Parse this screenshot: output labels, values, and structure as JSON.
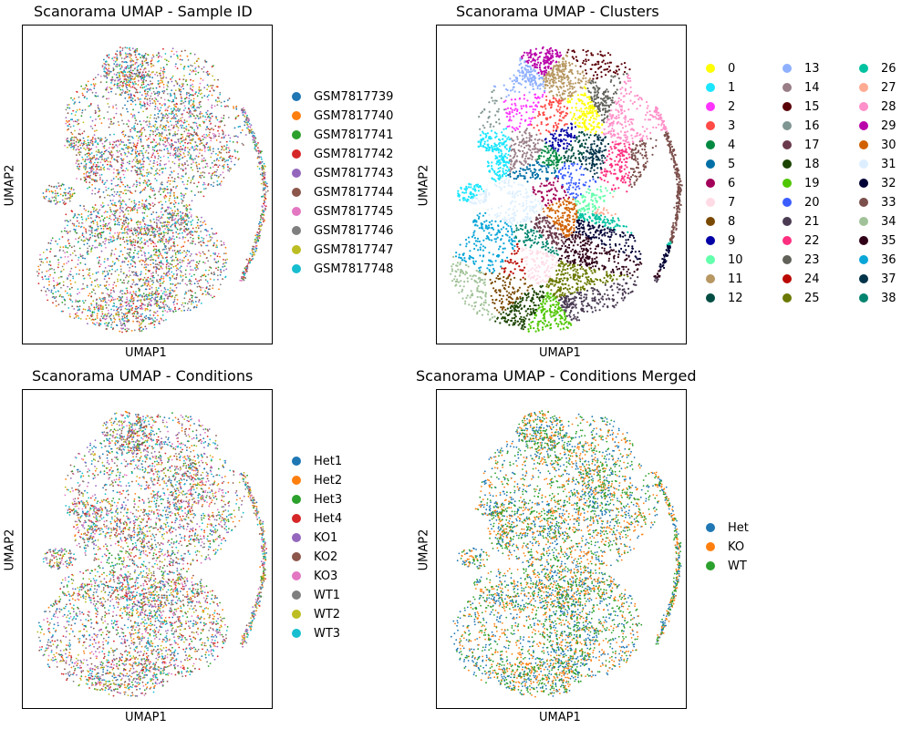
{
  "chart_data": [
    {
      "type": "scatter",
      "title": "Scanorama UMAP - Sample ID",
      "xlabel": "UMAP1",
      "ylabel": "UMAP2",
      "grid": false,
      "legend_placement": "right",
      "series": [
        {
          "name": "GSM7817739",
          "color": "#1f77b4"
        },
        {
          "name": "GSM7817740",
          "color": "#ff7f0e"
        },
        {
          "name": "GSM7817741",
          "color": "#2ca02c"
        },
        {
          "name": "GSM7817742",
          "color": "#d62728"
        },
        {
          "name": "GSM7817743",
          "color": "#9467bd"
        },
        {
          "name": "GSM7817744",
          "color": "#8c564b"
        },
        {
          "name": "GSM7817745",
          "color": "#e377c2"
        },
        {
          "name": "GSM7817746",
          "color": "#7f7f7f"
        },
        {
          "name": "GSM7817747",
          "color": "#bcbd22"
        },
        {
          "name": "GSM7817748",
          "color": "#17becf"
        }
      ]
    },
    {
      "type": "scatter",
      "title": "Scanorama UMAP - Clusters",
      "xlabel": "UMAP1",
      "ylabel": "UMAP2",
      "grid": false,
      "legend_placement": "right",
      "series": [
        {
          "name": "0",
          "color": "#ffff00"
        },
        {
          "name": "1",
          "color": "#1ce6ff"
        },
        {
          "name": "2",
          "color": "#ff34ff"
        },
        {
          "name": "3",
          "color": "#ff4a46"
        },
        {
          "name": "4",
          "color": "#008941"
        },
        {
          "name": "5",
          "color": "#006fa6"
        },
        {
          "name": "6",
          "color": "#a30059"
        },
        {
          "name": "7",
          "color": "#ffdbe5"
        },
        {
          "name": "8",
          "color": "#7a4900"
        },
        {
          "name": "9",
          "color": "#0000a6"
        },
        {
          "name": "10",
          "color": "#63ffac"
        },
        {
          "name": "11",
          "color": "#b79762"
        },
        {
          "name": "12",
          "color": "#004d43"
        },
        {
          "name": "13",
          "color": "#8fb0ff"
        },
        {
          "name": "14",
          "color": "#997d87"
        },
        {
          "name": "15",
          "color": "#5a0007"
        },
        {
          "name": "16",
          "color": "#809693"
        },
        {
          "name": "17",
          "color": "#6a3a4c"
        },
        {
          "name": "18",
          "color": "#1b4400"
        },
        {
          "name": "19",
          "color": "#4fc601"
        },
        {
          "name": "20",
          "color": "#3b5dff"
        },
        {
          "name": "21",
          "color": "#4a3b53"
        },
        {
          "name": "22",
          "color": "#ff2f80"
        },
        {
          "name": "23",
          "color": "#61615a"
        },
        {
          "name": "24",
          "color": "#ba0900"
        },
        {
          "name": "25",
          "color": "#6b7900"
        },
        {
          "name": "26",
          "color": "#00c2a0"
        },
        {
          "name": "27",
          "color": "#ffaa92"
        },
        {
          "name": "28",
          "color": "#ff90c9"
        },
        {
          "name": "29",
          "color": "#b903aa"
        },
        {
          "name": "30",
          "color": "#d16100"
        },
        {
          "name": "31",
          "color": "#ddefff"
        },
        {
          "name": "32",
          "color": "#000035"
        },
        {
          "name": "33",
          "color": "#7b4f4b"
        },
        {
          "name": "34",
          "color": "#a1c299"
        },
        {
          "name": "35",
          "color": "#300018"
        },
        {
          "name": "36",
          "color": "#0aa6d8"
        },
        {
          "name": "37",
          "color": "#013349"
        },
        {
          "name": "38",
          "color": "#00846f"
        }
      ]
    },
    {
      "type": "scatter",
      "title": "Scanorama UMAP - Conditions",
      "xlabel": "UMAP1",
      "ylabel": "UMAP2",
      "grid": false,
      "legend_placement": "right",
      "series": [
        {
          "name": "Het1",
          "color": "#1f77b4"
        },
        {
          "name": "Het2",
          "color": "#ff7f0e"
        },
        {
          "name": "Het3",
          "color": "#2ca02c"
        },
        {
          "name": "Het4",
          "color": "#d62728"
        },
        {
          "name": "KO1",
          "color": "#9467bd"
        },
        {
          "name": "KO2",
          "color": "#8c564b"
        },
        {
          "name": "KO3",
          "color": "#e377c2"
        },
        {
          "name": "WT1",
          "color": "#7f7f7f"
        },
        {
          "name": "WT2",
          "color": "#bcbd22"
        },
        {
          "name": "WT3",
          "color": "#17becf"
        }
      ]
    },
    {
      "type": "scatter",
      "title": "Scanorama UMAP - Conditions Merged",
      "xlabel": "UMAP1",
      "ylabel": "UMAP2",
      "grid": false,
      "legend_placement": "right",
      "series": [
        {
          "name": "Het",
          "color": "#1f77b4"
        },
        {
          "name": "KO",
          "color": "#ff7f0e"
        },
        {
          "name": "WT",
          "color": "#2ca02c"
        }
      ]
    }
  ]
}
